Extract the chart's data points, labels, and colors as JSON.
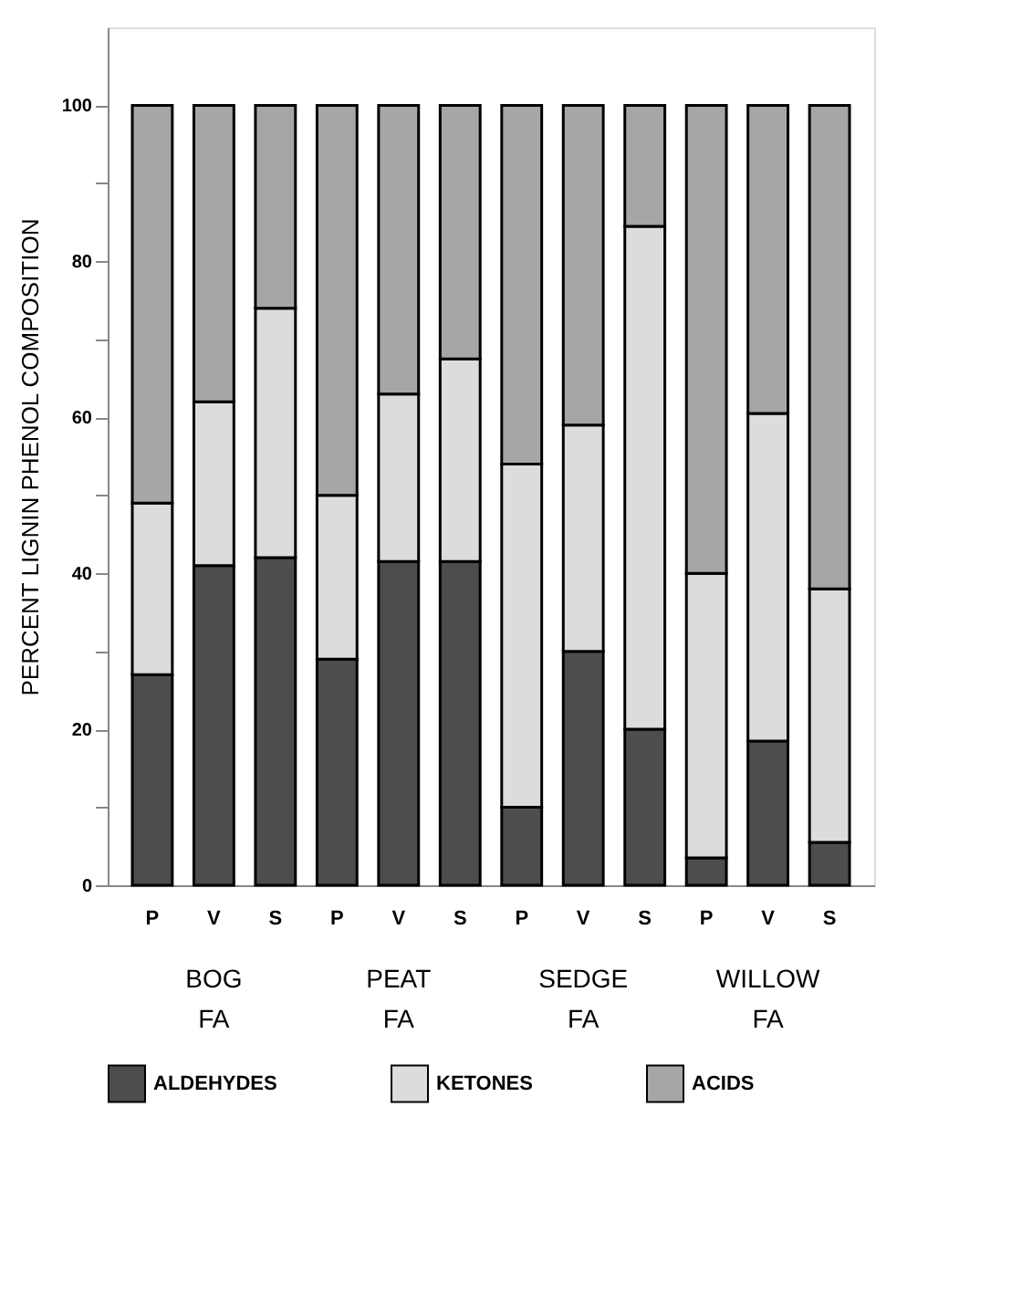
{
  "chart_data": {
    "type": "bar",
    "stacked": true,
    "ylabel": "PERCENT LIGNIN PHENOL COMPOSITION",
    "categories": [
      "P",
      "V",
      "S",
      "P",
      "V",
      "S",
      "P",
      "V",
      "S",
      "P",
      "V",
      "S"
    ],
    "series": [
      {
        "name": "ALDEHYDES",
        "color": "#4d4d4d",
        "values": [
          27,
          41,
          42,
          29,
          41.5,
          41.5,
          10,
          30,
          20,
          3.5,
          18.5,
          5.5
        ]
      },
      {
        "name": "KETONES",
        "color": "#dcdcdc",
        "values": [
          22,
          21,
          32,
          21,
          21.5,
          26,
          44,
          29,
          64.5,
          36.5,
          42,
          32.5
        ]
      },
      {
        "name": "ACIDS",
        "color": "#a6a6a6",
        "values": [
          51,
          38,
          26,
          50,
          37,
          32.5,
          46,
          41,
          15.5,
          60,
          39.5,
          62
        ]
      }
    ],
    "ylim": [
      0,
      110
    ],
    "yticks": [
      0,
      {
        "value": 10,
        "label": null
      },
      20,
      {
        "value": 30,
        "label": null
      },
      40,
      {
        "value": 50,
        "label": null
      },
      60,
      {
        "value": 70,
        "label": null
      },
      80,
      {
        "value": 90,
        "label": null
      },
      100
    ],
    "annotations": [
      "BOG\nFA",
      "PEAT\nFA",
      "SEDGE\nFA",
      "WILLOW\nFA"
    ],
    "legend": "bottom",
    "grid": false
  }
}
